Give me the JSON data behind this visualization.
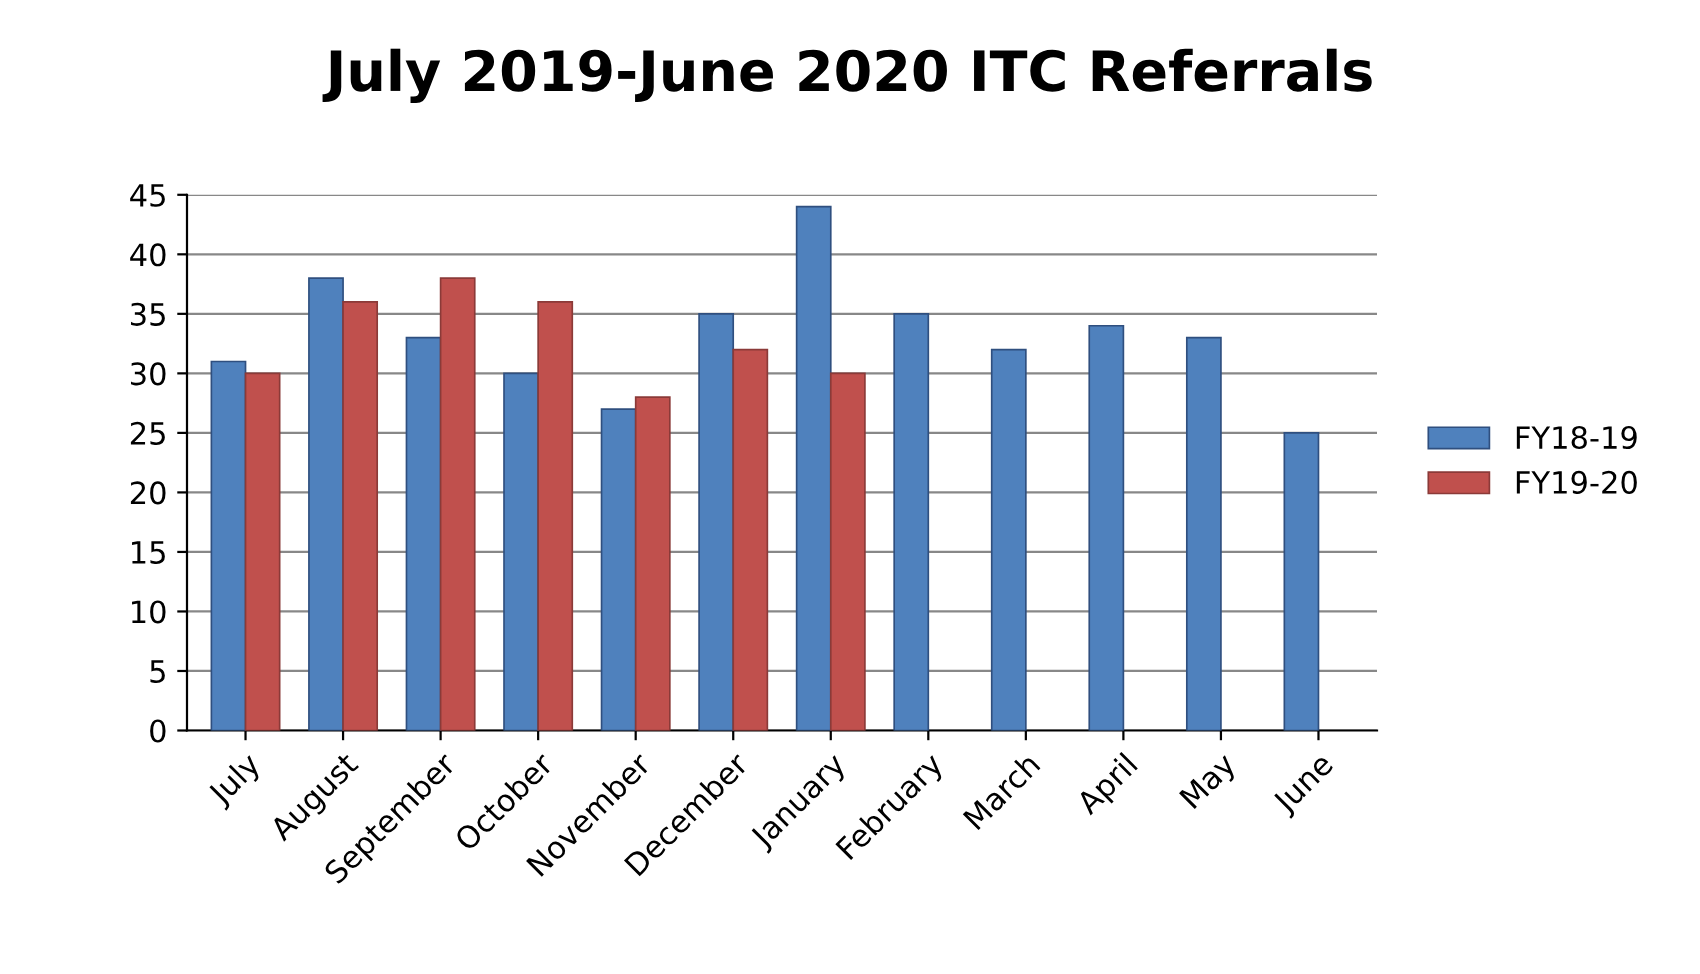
{
  "chart_data": {
    "type": "bar",
    "title": "July 2019-June 2020 ITC Referrals",
    "categories": [
      "July",
      "August",
      "September",
      "October",
      "November",
      "December",
      "January",
      "February",
      "March",
      "April",
      "May",
      "June"
    ],
    "series": [
      {
        "name": "FY18-19",
        "color": "#4f81bd",
        "values": [
          31,
          38,
          33,
          30,
          27,
          35,
          44,
          35,
          32,
          34,
          33,
          25
        ]
      },
      {
        "name": "FY19-20",
        "color": "#c0504d",
        "values": [
          30,
          36,
          38,
          36,
          28,
          32,
          30,
          null,
          null,
          null,
          null,
          null
        ]
      }
    ],
    "ylim": [
      0,
      45
    ],
    "yticks": [
      0,
      5,
      10,
      15,
      20,
      25,
      30,
      35,
      40,
      45
    ],
    "grid": "y",
    "legend": "right"
  }
}
